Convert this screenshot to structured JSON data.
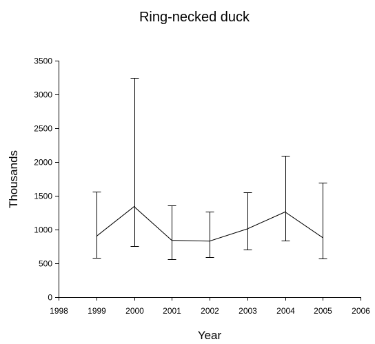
{
  "chart_data": {
    "type": "line",
    "title": "Ring-necked duck",
    "xlabel": "Year",
    "ylabel": "Thousands",
    "xlim": [
      1998,
      2006
    ],
    "ylim": [
      0,
      3500
    ],
    "x_ticks": [
      1998,
      1999,
      2000,
      2001,
      2002,
      2003,
      2004,
      2005,
      2006
    ],
    "y_ticks": [
      0,
      500,
      1000,
      1500,
      2000,
      2500,
      3000,
      3500
    ],
    "grid": false,
    "legend": "none",
    "series": [
      {
        "x": [
          1999,
          2000,
          2001,
          2002,
          2003,
          2004,
          2005
        ],
        "y": [
          900,
          1340,
          840,
          830,
          1010,
          1260,
          880
        ],
        "error_low": [
          580,
          760,
          560,
          590,
          700,
          840,
          575
        ],
        "error_high": [
          1560,
          3240,
          1360,
          1270,
          1550,
          2090,
          1690
        ],
        "color": "#000000"
      }
    ]
  }
}
